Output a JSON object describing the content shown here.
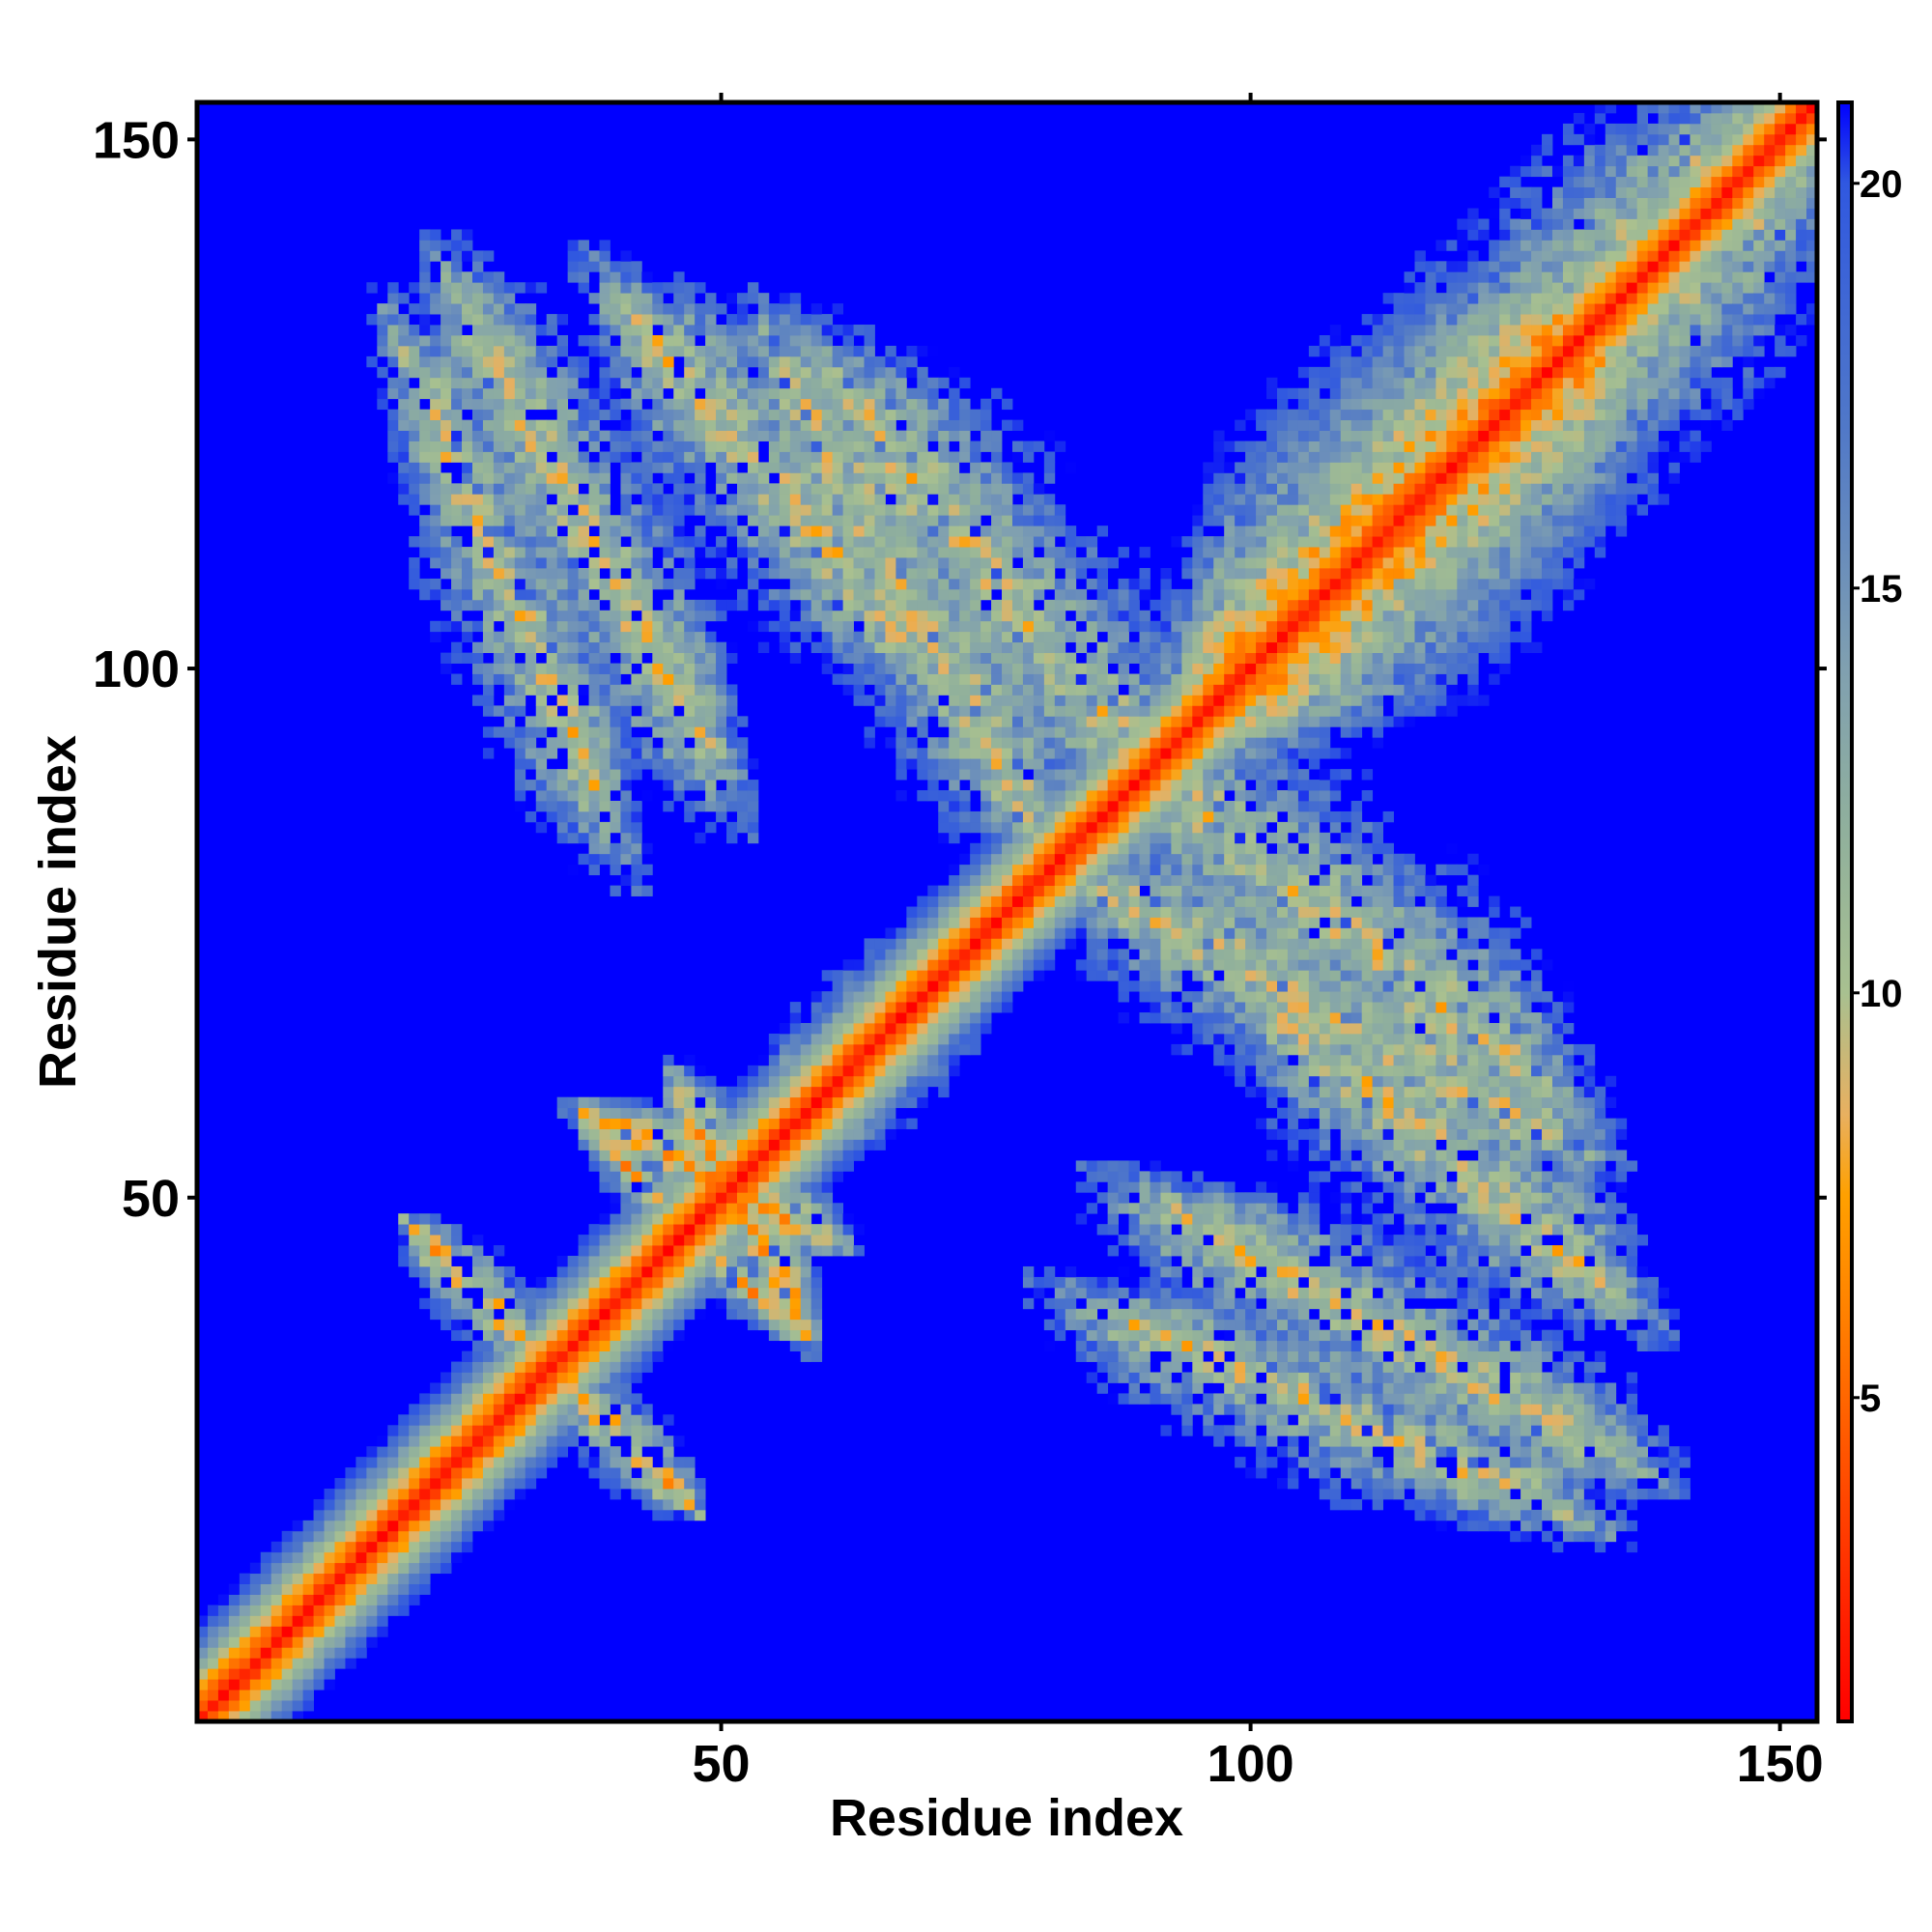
{
  "chart_data": {
    "type": "heatmap",
    "title": "",
    "xlabel": "Residue index",
    "ylabel": "Residue index",
    "n_residues": 153,
    "xlim": [
      1,
      153
    ],
    "ylim": [
      1,
      153
    ],
    "x_ticks": [
      50,
      100,
      150
    ],
    "y_ticks": [
      50,
      100,
      150
    ],
    "colorbar": {
      "range": [
        1,
        21
      ],
      "ticks": [
        5,
        10,
        15,
        20
      ],
      "stops": [
        {
          "value": 1,
          "color": "#ff0000"
        },
        {
          "value": 3,
          "color": "#ff3300"
        },
        {
          "value": 6,
          "color": "#ff8000"
        },
        {
          "value": 7.5,
          "color": "#ffa000"
        },
        {
          "value": 8.5,
          "color": "#e8b060"
        },
        {
          "value": 10,
          "color": "#a8c090"
        },
        {
          "value": 12,
          "color": "#90b09c"
        },
        {
          "value": 14,
          "color": "#80a0b0"
        },
        {
          "value": 17,
          "color": "#5078c8"
        },
        {
          "value": 20,
          "color": "#3058e0"
        },
        {
          "value": 21,
          "color": "#0000ff"
        }
      ]
    },
    "background_value": 21,
    "background_color": "#0000ff",
    "structure": {
      "diagonal_band": {
        "from": 1,
        "to": 153,
        "core_value": 1,
        "halfwidth": 3
      },
      "contacts": [
        {
          "i_range": [
            21,
            33
          ],
          "j_range": [
            35,
            47
          ],
          "orientation": "antiparallel",
          "min_value": 5
        },
        {
          "i_range": [
            37,
            45
          ],
          "j_range": [
            48,
            58
          ],
          "orientation": "antiparallel",
          "min_value": 5
        },
        {
          "i_range": [
            46,
            58
          ],
          "j_range": [
            38,
            60
          ],
          "orientation": "antiparallel",
          "min_value": 5
        },
        {
          "i_range": [
            55,
            75
          ],
          "j_range": [
            55,
            75
          ],
          "orientation": "parallel",
          "min_value": 4
        },
        {
          "i_range": [
            95,
            135
          ],
          "j_range": [
            95,
            135
          ],
          "orientation": "parallel",
          "min_value": 3
        },
        {
          "i_range": [
            20,
            40
          ],
          "j_range": [
            85,
            130
          ],
          "orientation": "antiparallel",
          "min_value": 7
        },
        {
          "i_range": [
            40,
            70
          ],
          "j_range": [
            100,
            135
          ],
          "orientation": "antiparallel",
          "min_value": 7
        },
        {
          "i_range": [
            60,
            95
          ],
          "j_range": [
            85,
            128
          ],
          "orientation": "antiparallel",
          "min_value": 7
        },
        {
          "i_range": [
            85,
            130
          ],
          "j_range": [
            55,
            80
          ],
          "orientation": "antiparallel",
          "min_value": 7
        },
        {
          "i_range": [
            90,
            135
          ],
          "j_range": [
            25,
            50
          ],
          "orientation": "antiparallel",
          "min_value": 7
        },
        {
          "i_range": [
            105,
            150
          ],
          "j_range": [
            105,
            152
          ],
          "orientation": "parallel",
          "min_value": 6
        },
        {
          "i_range": [
            15,
            30
          ],
          "j_range": [
            15,
            30
          ],
          "orientation": "parallel",
          "min_value": 4
        }
      ]
    }
  }
}
